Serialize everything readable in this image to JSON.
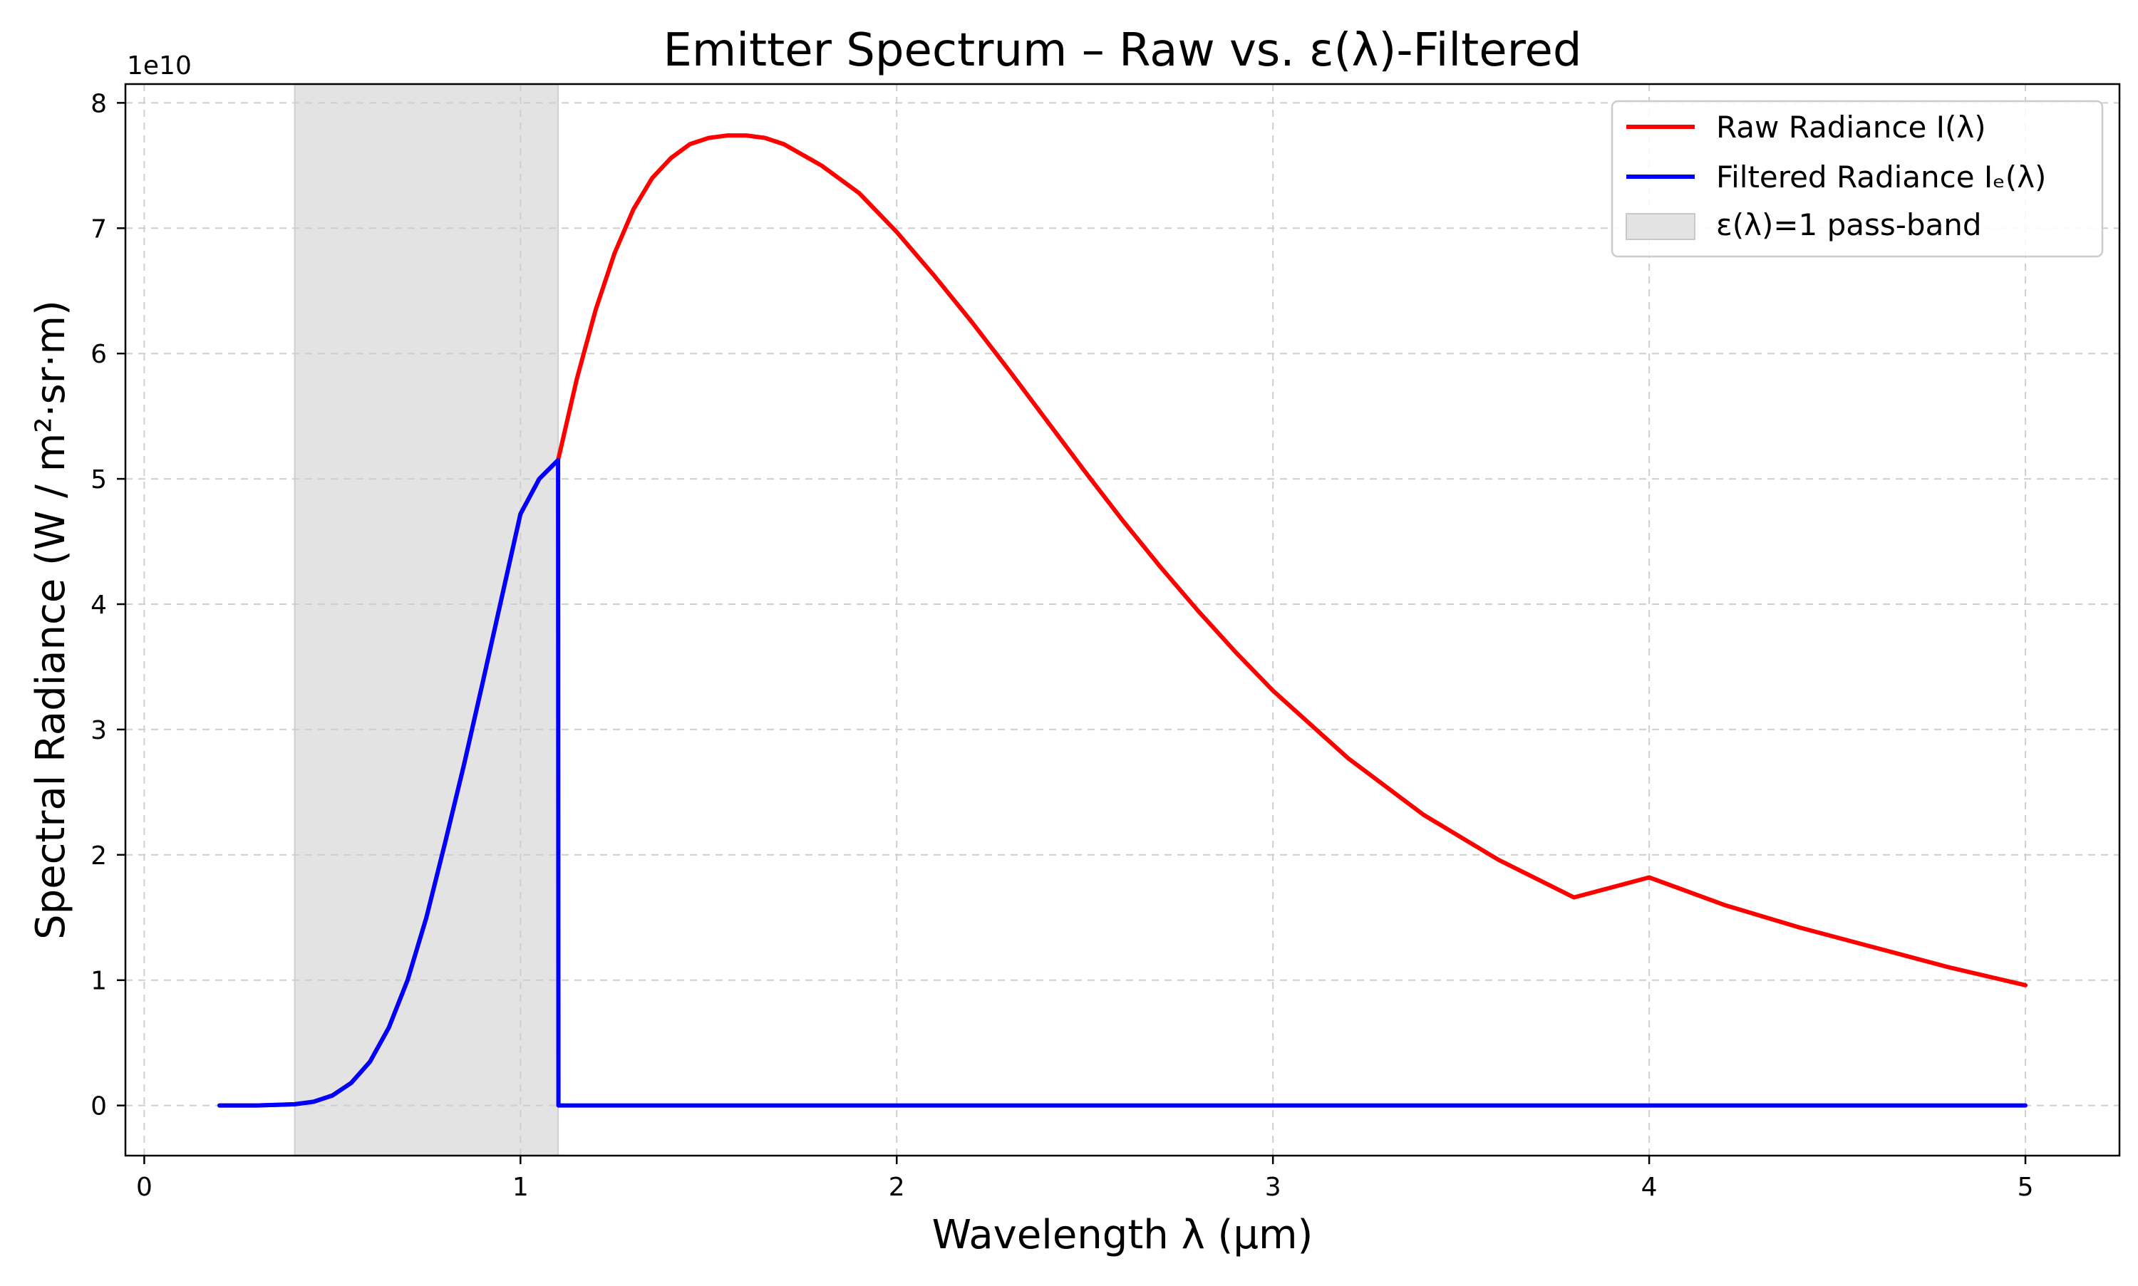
{
  "chart_data": {
    "type": "line",
    "title": "Emitter Spectrum  –  Raw vs. ε(λ)-Filtered",
    "xlabel": "Wavelength  λ  (μm)",
    "ylabel": "Spectral Radiance  (W / m²·sr·m)",
    "y_offset_text": "1e10",
    "xlim": [
      -0.05,
      5.25
    ],
    "ylim": [
      -0.4,
      8.15
    ],
    "y_multiplier": 10000000000,
    "x_ticks": [
      0,
      1,
      2,
      3,
      4,
      5
    ],
    "x_tick_labels": [
      "0",
      "1",
      "2",
      "3",
      "4",
      "5"
    ],
    "y_ticks": [
      0,
      1,
      2,
      3,
      4,
      5,
      6,
      7,
      8
    ],
    "y_tick_labels": [
      "0",
      "1",
      "2",
      "3",
      "4",
      "5",
      "6",
      "7",
      "8"
    ],
    "grid": true,
    "legend_position": "upper right",
    "band": {
      "name": "ε(λ)=1  pass-band",
      "x_start": 0.4,
      "x_end": 1.1,
      "color": "#e3e3e3"
    },
    "series": [
      {
        "name": "Raw Radiance  I(λ)",
        "color": "#ff0000",
        "x": [
          0.2,
          0.3,
          0.4,
          0.45,
          0.5,
          0.55,
          0.6,
          0.65,
          0.7,
          0.75,
          0.8,
          0.85,
          0.9,
          0.95,
          1.0,
          1.05,
          1.1,
          1.15,
          1.2,
          1.25,
          1.3,
          1.35,
          1.4,
          1.45,
          1.5,
          1.55,
          1.6,
          1.65,
          1.7,
          1.8,
          1.9,
          2.0,
          2.1,
          2.2,
          2.3,
          2.4,
          2.5,
          2.6,
          2.7,
          2.8,
          2.9,
          3.0,
          3.2,
          3.4,
          3.6,
          3.8,
          4.0,
          4.2,
          4.4,
          4.6,
          4.8,
          5.0
        ],
        "y": [
          0.0,
          0.0,
          0.01,
          0.03,
          0.08,
          0.18,
          0.35,
          0.62,
          1.0,
          1.5,
          2.1,
          2.72,
          3.38,
          4.05,
          4.72,
          5.0,
          5.15,
          5.8,
          6.35,
          6.8,
          7.15,
          7.4,
          7.56,
          7.67,
          7.72,
          7.74,
          7.74,
          7.72,
          7.67,
          7.5,
          7.28,
          6.97,
          6.62,
          6.25,
          5.86,
          5.46,
          5.06,
          4.67,
          4.3,
          3.95,
          3.62,
          3.31,
          2.77,
          2.32,
          1.96,
          1.66,
          1.82,
          1.6,
          1.42,
          1.26,
          1.1,
          0.96
        ]
      },
      {
        "name": "Filtered Radiance  Iₑ(λ)",
        "color": "#0000ff",
        "x": [
          0.2,
          0.3,
          0.4,
          0.45,
          0.5,
          0.55,
          0.6,
          0.65,
          0.7,
          0.75,
          0.8,
          0.85,
          0.9,
          0.95,
          1.0,
          1.05,
          1.1,
          1.101,
          1.5,
          2.0,
          3.0,
          4.0,
          5.0
        ],
        "y": [
          0.0,
          0.0,
          0.01,
          0.03,
          0.08,
          0.18,
          0.35,
          0.62,
          1.0,
          1.5,
          2.1,
          2.72,
          3.38,
          4.05,
          4.72,
          5.0,
          5.15,
          0.0,
          0.0,
          0.0,
          0.0,
          0.0,
          0.0
        ]
      }
    ]
  }
}
